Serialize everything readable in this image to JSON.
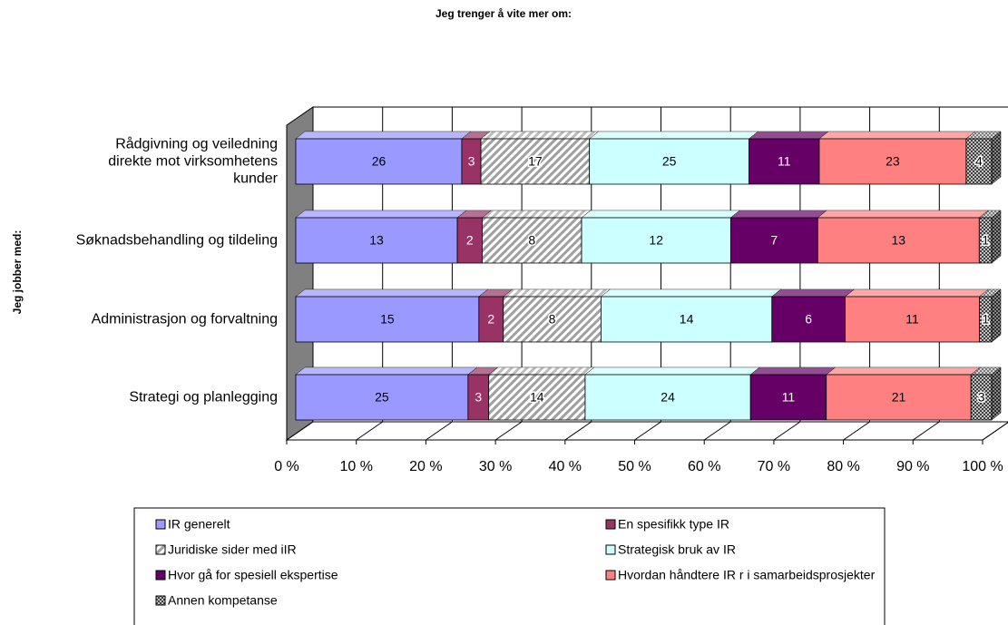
{
  "chart_data": {
    "type": "stacked-percent-bar-horizontal",
    "title": "Jeg trenger å vite mer om:",
    "y_label": "Jeg jobber med:",
    "categories": [
      "Rådgivning og veiledning\ndirekte mot virksomhetens\nkunder",
      "Søknadsbehandling og tildeling",
      "Administrasjon og forvaltning",
      "Strategi og planlegging"
    ],
    "series": [
      {
        "name": "IR generelt",
        "color": "#9999ff",
        "values": [
          26,
          13,
          15,
          25
        ]
      },
      {
        "name": "En spesifikk type IR",
        "color": "#993366",
        "values": [
          3,
          2,
          2,
          3
        ]
      },
      {
        "name": "Juridiske sider med iIR",
        "color": "#c0c0c0",
        "pattern": "diagonal",
        "values": [
          17,
          8,
          8,
          14
        ]
      },
      {
        "name": "Strategisk bruk av IR",
        "color": "#ccffff",
        "values": [
          25,
          12,
          14,
          24
        ]
      },
      {
        "name": "Hvor gå for spesiell ekspertise",
        "color": "#660066",
        "values": [
          11,
          7,
          6,
          11
        ]
      },
      {
        "name": "Hvordan håndtere IR r i samarbeidsprosjekter",
        "color": "#ff8080",
        "values": [
          23,
          13,
          11,
          21
        ]
      },
      {
        "name": "Annen kompetanse",
        "color": "#808080",
        "pattern": "dots",
        "values": [
          4,
          1,
          1,
          3
        ]
      }
    ],
    "xlim": [
      0,
      100
    ],
    "xticks": [
      {
        "value": 0,
        "label": "0 %"
      },
      {
        "value": 10,
        "label": "10 %"
      },
      {
        "value": 20,
        "label": "20 %"
      },
      {
        "value": 30,
        "label": "30 %"
      },
      {
        "value": 40,
        "label": "40 %"
      },
      {
        "value": 50,
        "label": "50 %"
      },
      {
        "value": 60,
        "label": "60 %"
      },
      {
        "value": 70,
        "label": "70 %"
      },
      {
        "value": 80,
        "label": "80 %"
      },
      {
        "value": 90,
        "label": "90 %"
      },
      {
        "value": 100,
        "label": "100 %"
      }
    ],
    "grid": true,
    "legend": "bottom"
  }
}
